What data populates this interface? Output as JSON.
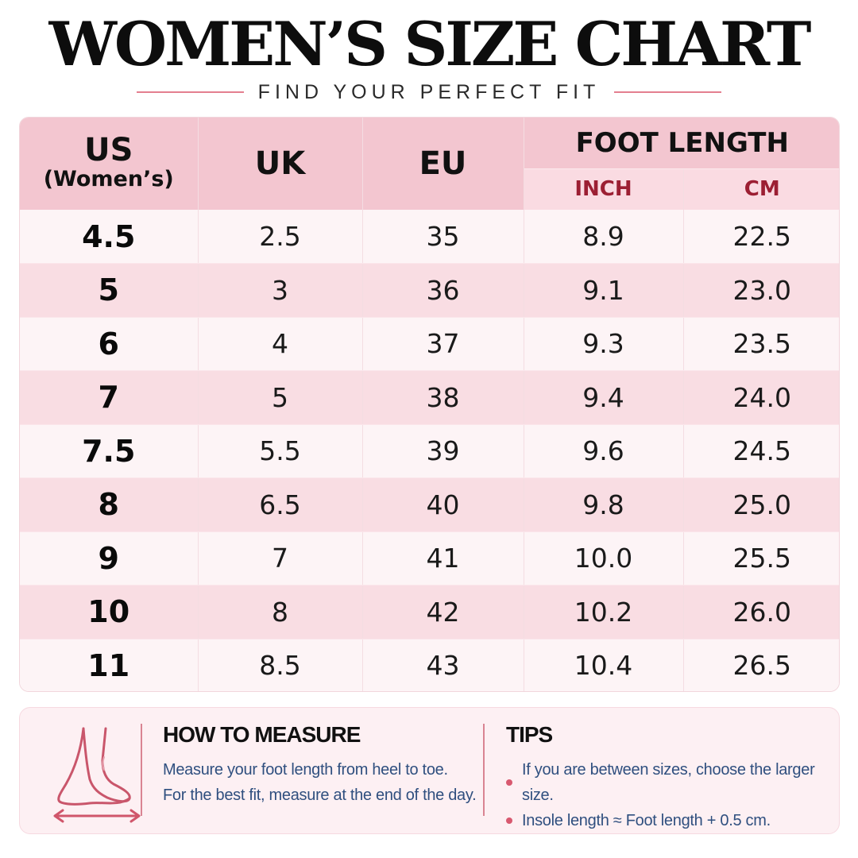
{
  "title": "WOMEN’S SIZE CHART",
  "subtitle": "FIND YOUR PERFECT FIT",
  "table": {
    "headers": {
      "us": "US",
      "us_sub": "(Women’s)",
      "uk": "UK",
      "eu": "EU",
      "foot_length": "FOOT LENGTH",
      "inch": "INCH",
      "cm": "CM"
    },
    "rows": [
      {
        "us": "4.5",
        "uk": "2.5",
        "eu": "35",
        "inch": "8.9",
        "cm": "22.5"
      },
      {
        "us": "5",
        "uk": "3",
        "eu": "36",
        "inch": "9.1",
        "cm": "23.0"
      },
      {
        "us": "6",
        "uk": "4",
        "eu": "37",
        "inch": "9.3",
        "cm": "23.5"
      },
      {
        "us": "7",
        "uk": "5",
        "eu": "38",
        "inch": "9.4",
        "cm": "24.0"
      },
      {
        "us": "7.5",
        "uk": "5.5",
        "eu": "39",
        "inch": "9.6",
        "cm": "24.5"
      },
      {
        "us": "8",
        "uk": "6.5",
        "eu": "40",
        "inch": "9.8",
        "cm": "25.0"
      },
      {
        "us": "9",
        "uk": "7",
        "eu": "41",
        "inch": "10.0",
        "cm": "25.5"
      },
      {
        "us": "10",
        "uk": "8",
        "eu": "42",
        "inch": "10.2",
        "cm": "26.0"
      },
      {
        "us": "11",
        "uk": "8.5",
        "eu": "43",
        "inch": "10.4",
        "cm": "26.5"
      }
    ]
  },
  "how_to_measure": {
    "title": "HOW TO MEASURE",
    "lines": [
      "Measure your foot length from heel to toe.",
      "For the best fit, measure at the end of the day."
    ]
  },
  "tips": {
    "title": "TIPS",
    "items": [
      "If you are between sizes, choose the larger size.",
      "Insole length ≈ Foot length + 0.5 cm."
    ]
  },
  "icons": {
    "foot": "foot-measure-icon",
    "bullet": "bullet-dot-icon"
  },
  "colors": {
    "header_bg": "#f3c6d0",
    "subheader_bg": "#fadbe2",
    "unit_text": "#9c1f33",
    "accent_line": "#e47f8f",
    "row_odd": "#fdf4f6",
    "row_even": "#f9dde3",
    "note_text": "#2f4f7f"
  }
}
